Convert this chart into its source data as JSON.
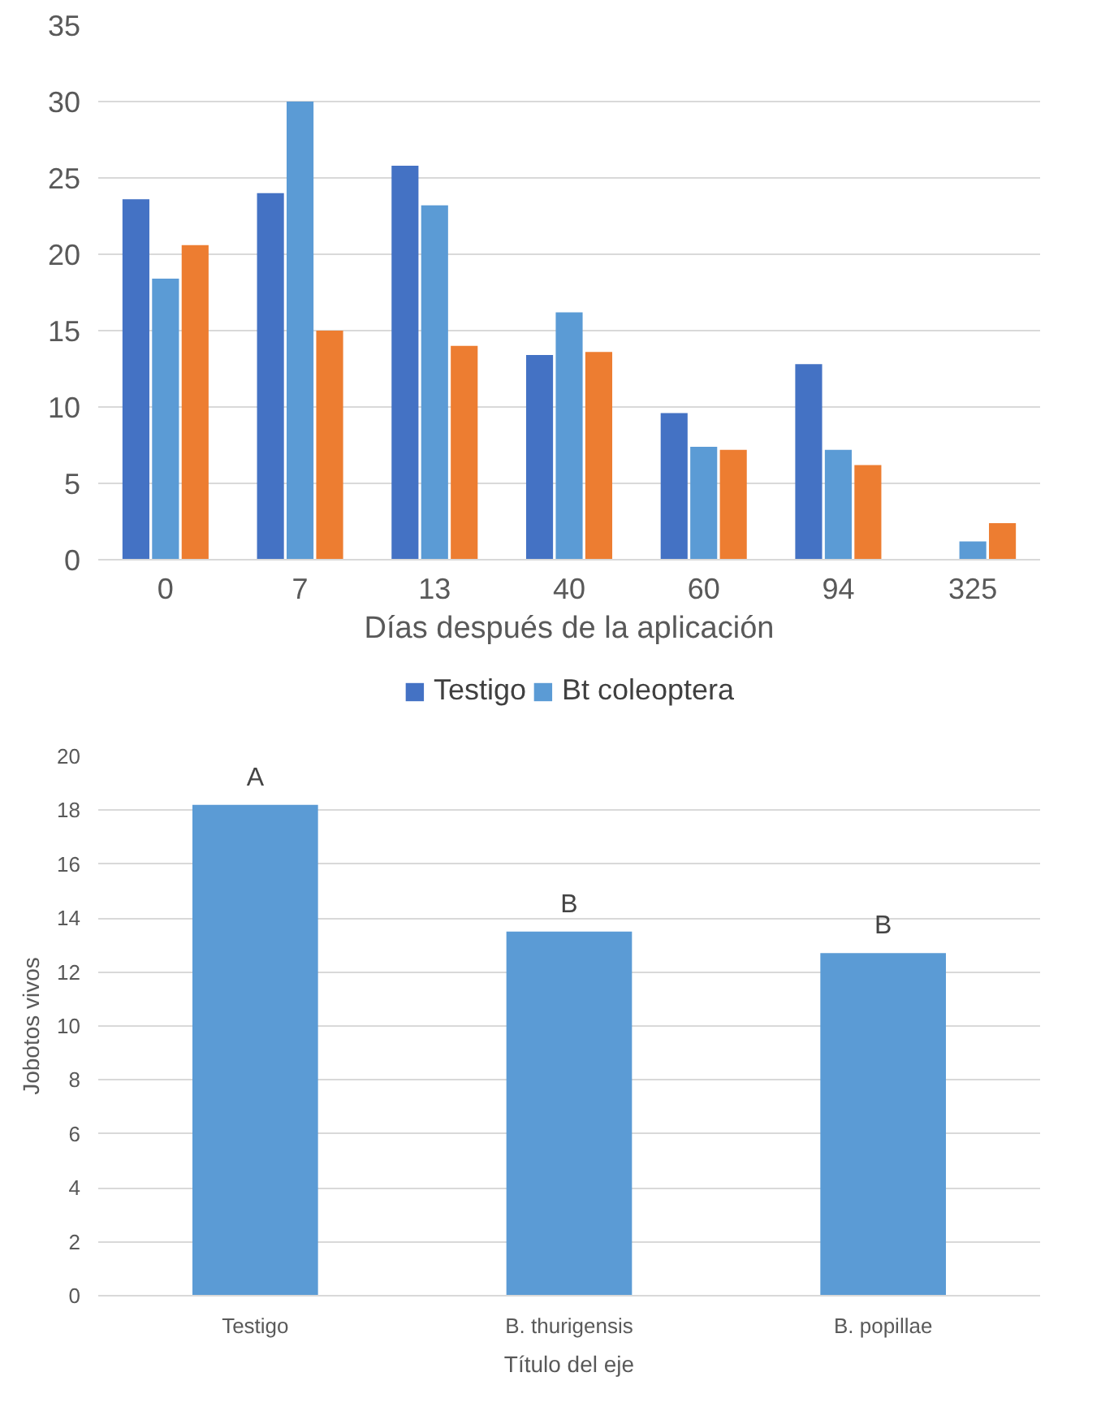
{
  "chart_data": [
    {
      "type": "bar",
      "xlabel": "Días después de la aplicación",
      "categories": [
        "0",
        "7",
        "13",
        "40",
        "60",
        "94",
        "325"
      ],
      "series": [
        {
          "name": "Testigo",
          "color": "#4472c4",
          "values": [
            23.6,
            24,
            25.8,
            13.4,
            9.6,
            12.8,
            null
          ]
        },
        {
          "name": "Bt coleoptera",
          "color": "#5b9bd5",
          "values": [
            18.4,
            30,
            23.2,
            16.2,
            7.4,
            7.2,
            1.2
          ]
        },
        {
          "color": "#ed7d31",
          "values": [
            20.6,
            15,
            14,
            13.6,
            7.2,
            6.2,
            2.4
          ]
        }
      ],
      "ylim": [
        0,
        35
      ],
      "yticks": [
        0,
        5,
        10,
        15,
        20,
        25,
        30,
        35
      ],
      "grid": "y",
      "legend": "bottom"
    },
    {
      "type": "bar",
      "xlabel": "Título del eje",
      "ylabel": "Jobotos vivos",
      "categories": [
        "Testigo",
        "B. thurigensis",
        "B. popillae"
      ],
      "series": [
        {
          "color": "#5b9bd5",
          "values": [
            18.2,
            13.5,
            12.7
          ]
        }
      ],
      "ylim": [
        0,
        20
      ],
      "yticks": [
        0,
        2,
        4,
        6,
        8,
        10,
        12,
        14,
        16,
        18,
        20
      ],
      "grid": "y",
      "annotations": [
        {
          "text": "A",
          "x": "Testigo",
          "y": 18.2
        },
        {
          "text": "B",
          "x": "B. thurigensis",
          "y": 13.5
        },
        {
          "text": "B",
          "x": "B. popillae",
          "y": 12.7
        }
      ]
    }
  ]
}
